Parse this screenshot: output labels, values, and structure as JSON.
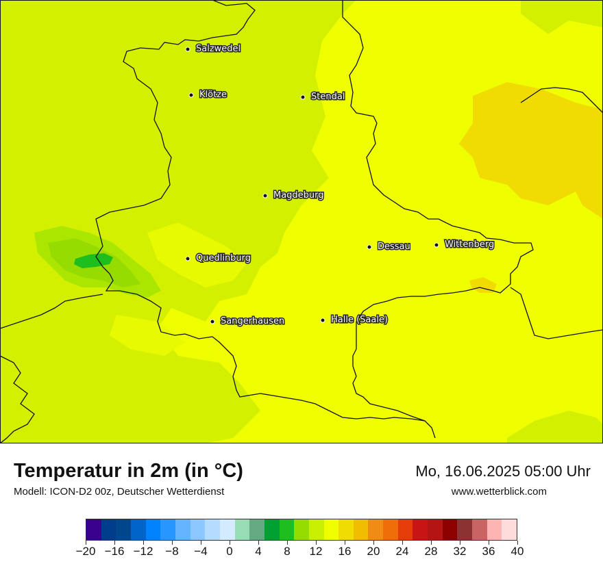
{
  "title": "Temperatur in 2m (in °C)",
  "model": "Modell: ICON-D2 00z, Deutscher Wetterdienst",
  "datetime": "Mo, 16.06.2025 05:00 Uhr",
  "website": "www.wetterblick.com",
  "cities": [
    "Salzwedel",
    "Klötze",
    "Stendal",
    "Magdeburg",
    "Dessau",
    "Wittenberg",
    "Quedlinburg",
    "Sangerhausen",
    "Halle (Saale)"
  ],
  "colorscale": {
    "colors": [
      "#38008c",
      "#003c8c",
      "#00468c",
      "#0064c8",
      "#0082ff",
      "#2896ff",
      "#64b4ff",
      "#8cc8ff",
      "#b4dcff",
      "#d2ebff",
      "#96dcb4",
      "#64aa82",
      "#00a032",
      "#1ebe1e",
      "#96dc00",
      "#c8f000",
      "#f0ff00",
      "#f0dc00",
      "#f0be00",
      "#f08c14",
      "#f06e0a",
      "#e63c0a",
      "#c81414",
      "#b41414",
      "#8c0000",
      "#8c3232",
      "#c86464",
      "#ffb4b4",
      "#ffdcdc"
    ],
    "labels": [
      "−20",
      "−16",
      "−12",
      "−8",
      "−4",
      "0",
      "4",
      "8",
      "12",
      "16",
      "20",
      "24",
      "28",
      "32",
      "36",
      "40"
    ]
  },
  "field_colors": {
    "background": "#f0ff00",
    "cool_west": "#d2f000",
    "cooler": "#aae600",
    "coolest": "#96dc00",
    "green": "#1ebe1e",
    "warm": "#f0dc00"
  }
}
